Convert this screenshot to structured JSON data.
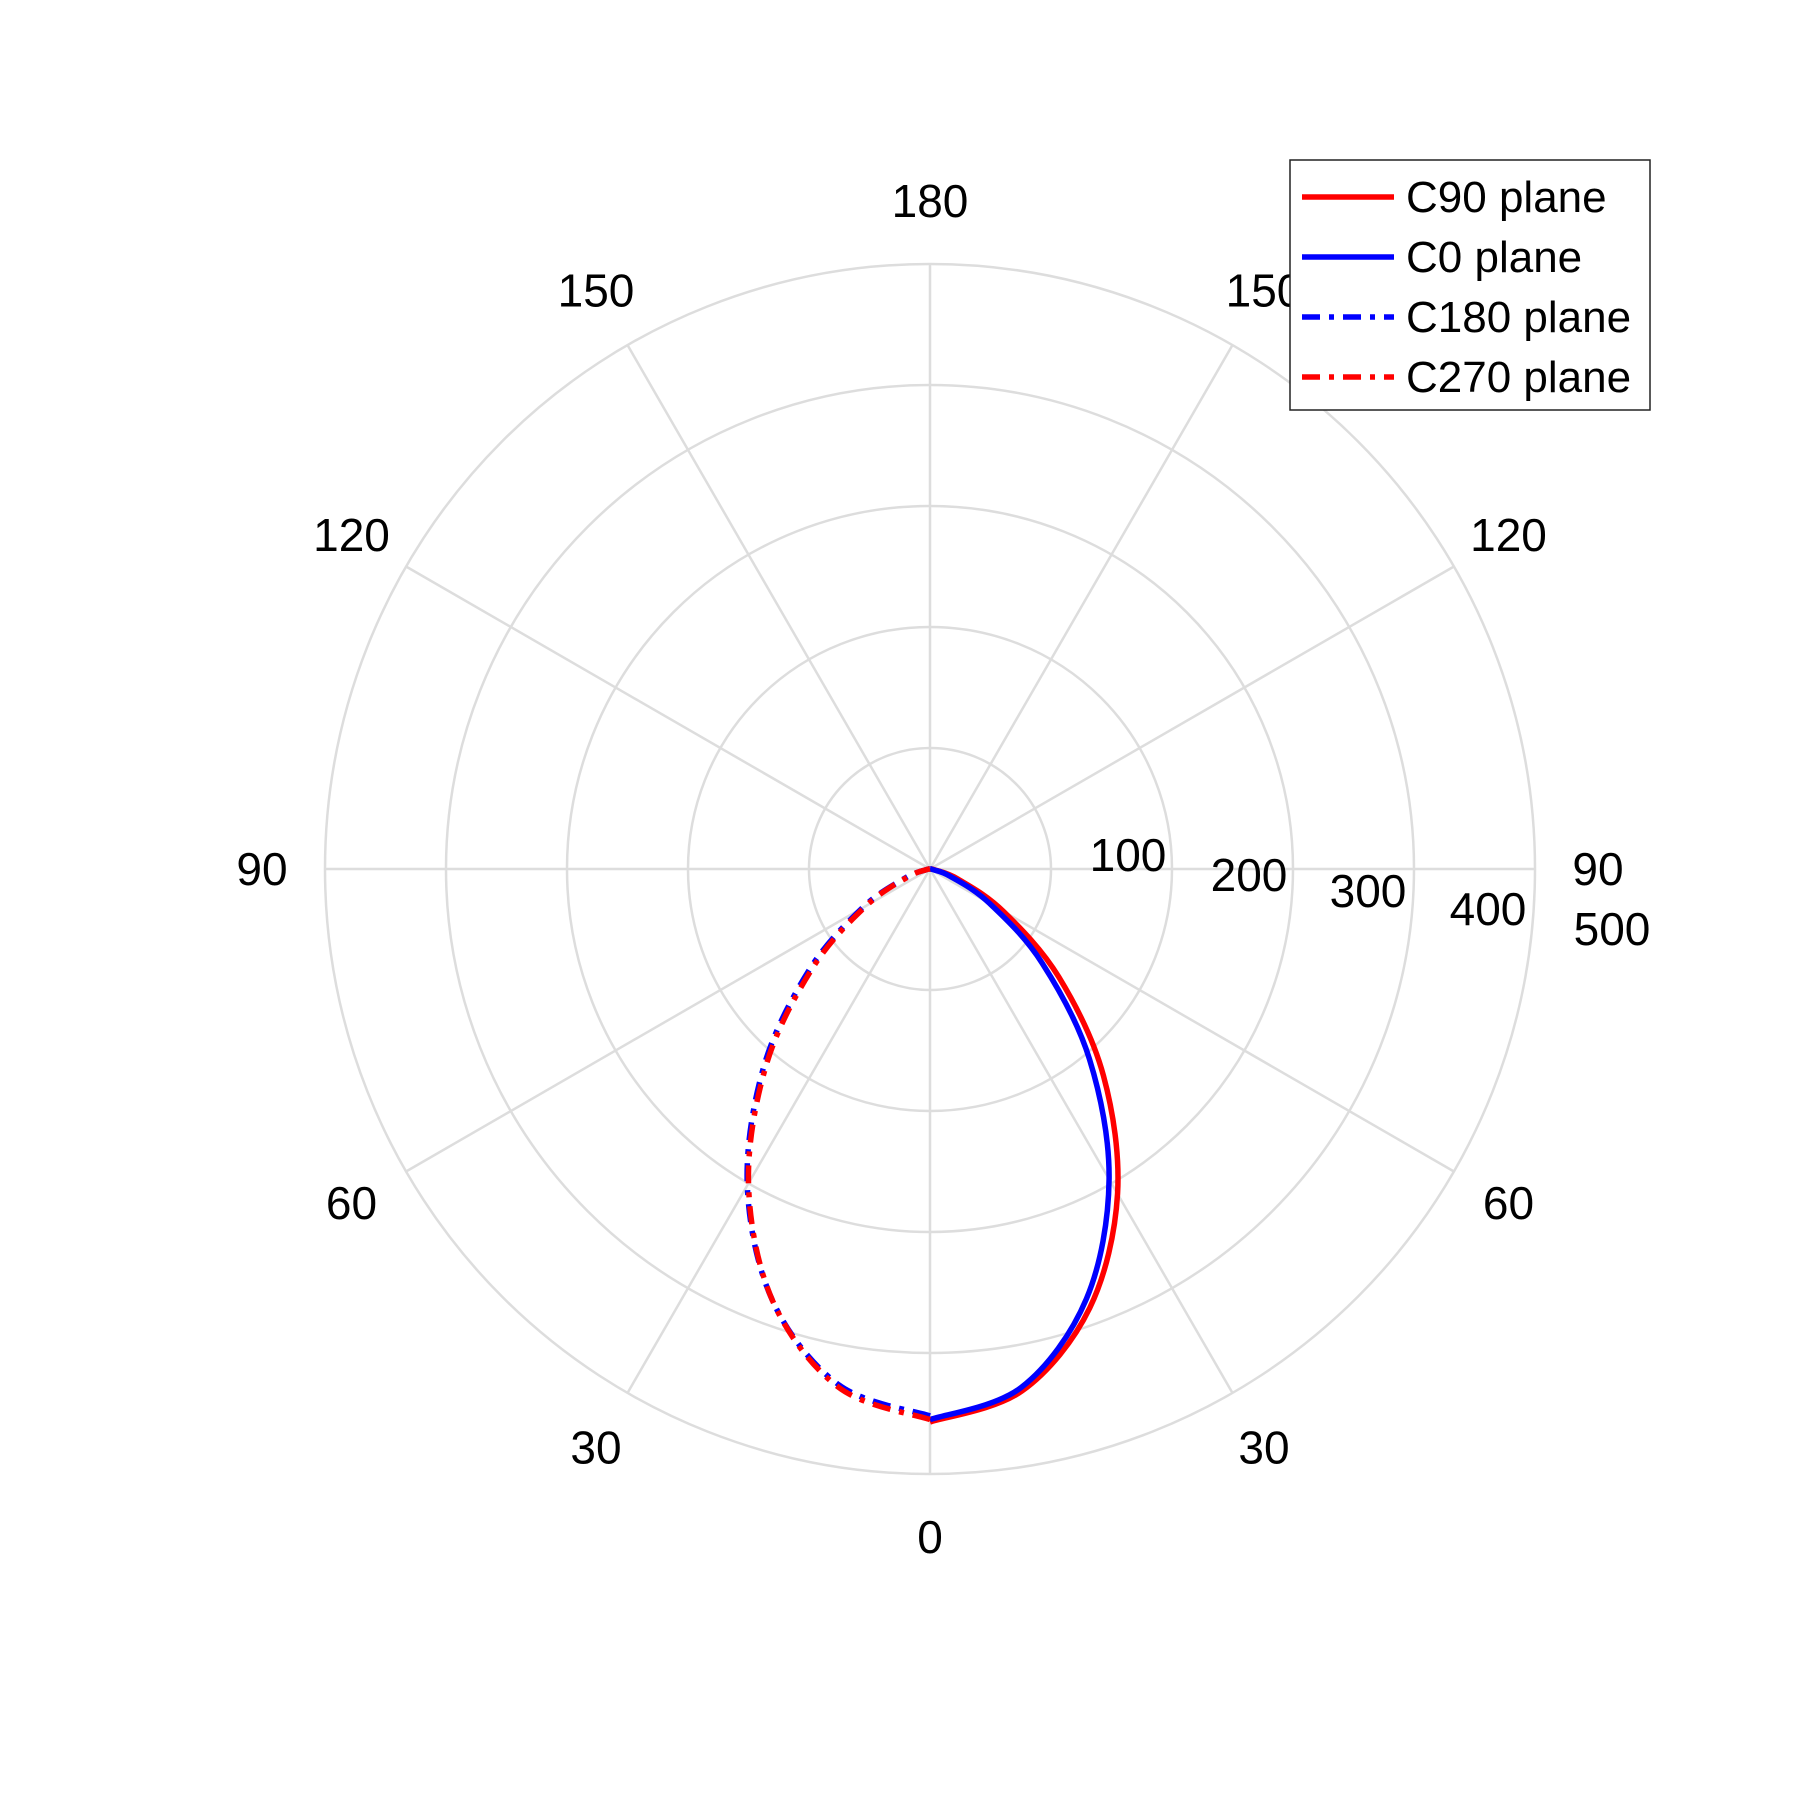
{
  "chart_data": {
    "type": "polar-line",
    "title": "",
    "angle_unit": "degrees",
    "zero_direction": "bottom",
    "angular_tick_labels": {
      "left": [
        "0",
        "30",
        "60",
        "90",
        "120",
        "150",
        "180"
      ],
      "right": [
        "30",
        "60",
        "90",
        "120",
        "150"
      ]
    },
    "radial_ticks": [
      100,
      200,
      300,
      400,
      500
    ],
    "rlim": [
      0,
      500
    ],
    "grid": true,
    "grid_color": "#dddddd",
    "legend_position": "top-right",
    "angles": [
      0,
      10,
      20,
      30,
      40,
      50,
      60,
      70,
      80,
      90
    ],
    "series": [
      {
        "name": "C90 plane",
        "side": "right",
        "color": "#ff0000",
        "style": "solid",
        "values": [
          457,
          438,
          386,
          310,
          223,
          139,
          70,
          25,
          4,
          0
        ]
      },
      {
        "name": "C0 plane",
        "side": "right",
        "color": "#0000ff",
        "style": "solid",
        "values": [
          455,
          435,
          378,
          296,
          205,
          121,
          57,
          18,
          2,
          0
        ]
      },
      {
        "name": "C180 plane",
        "side": "left",
        "color": "#0000ff",
        "style": "dashdot",
        "values": [
          452,
          433,
          380,
          302,
          214,
          131,
          65,
          22,
          3,
          0
        ]
      },
      {
        "name": "C270 plane",
        "side": "left",
        "color": "#ff0000",
        "style": "dashdot",
        "values": [
          455,
          435,
          380,
          300,
          210,
          126,
          61,
          20,
          3,
          0
        ]
      }
    ]
  }
}
